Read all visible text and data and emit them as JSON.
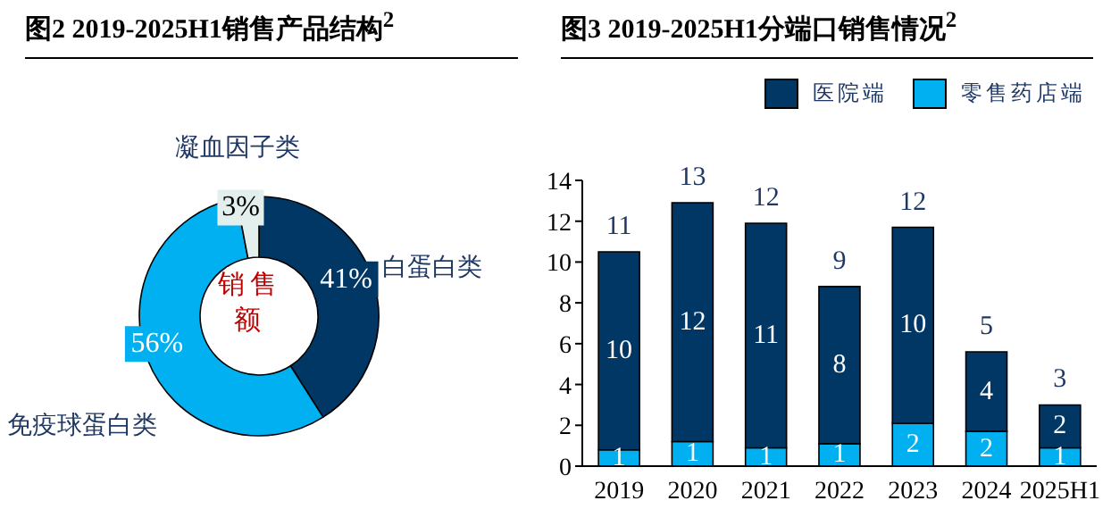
{
  "chart_data": [
    {
      "type": "donut",
      "title": "图2 2019-2025H1销售产品结构$^{2}$",
      "categories": [
        "白蛋白类",
        "免疫球蛋白类",
        "凝血因子类"
      ],
      "values": [
        41,
        56,
        3
      ],
      "colors": [
        "#003764",
        "#00b0f0",
        "#e2efed"
      ],
      "value_labels": [
        "41%",
        "56%",
        "3%"
      ],
      "annotations": [
        "销售额"
      ]
    },
    {
      "type": "bar",
      "title": "图3 2019-2025H1分端口销售情况$^{2}$",
      "categories": [
        "2019",
        "2020",
        "2021",
        "2022",
        "2023",
        "2024",
        "2025H1"
      ],
      "stacked": true,
      "ylim": [
        0,
        14
      ],
      "yticks": [
        0,
        2,
        4,
        6,
        8,
        10,
        12,
        14
      ],
      "grid": false,
      "legend": "top right",
      "series": [
        {
          "name": "零售药店端",
          "color": "#00b0f0",
          "values": [
            0.8,
            1.2,
            0.9,
            1.1,
            2.1,
            1.7,
            0.9
          ],
          "value_labels": [
            "1",
            "1",
            "1",
            "1",
            "2",
            "2",
            "1"
          ]
        },
        {
          "name": "医院端",
          "color": "#003764",
          "values": [
            9.7,
            11.7,
            11.0,
            7.7,
            9.6,
            3.9,
            2.1
          ],
          "value_labels": [
            "10",
            "12",
            "11",
            "8",
            "10",
            "4",
            "2"
          ]
        }
      ],
      "totals": [
        "11",
        "13",
        "12",
        "9",
        "12",
        "5",
        "3"
      ]
    }
  ]
}
